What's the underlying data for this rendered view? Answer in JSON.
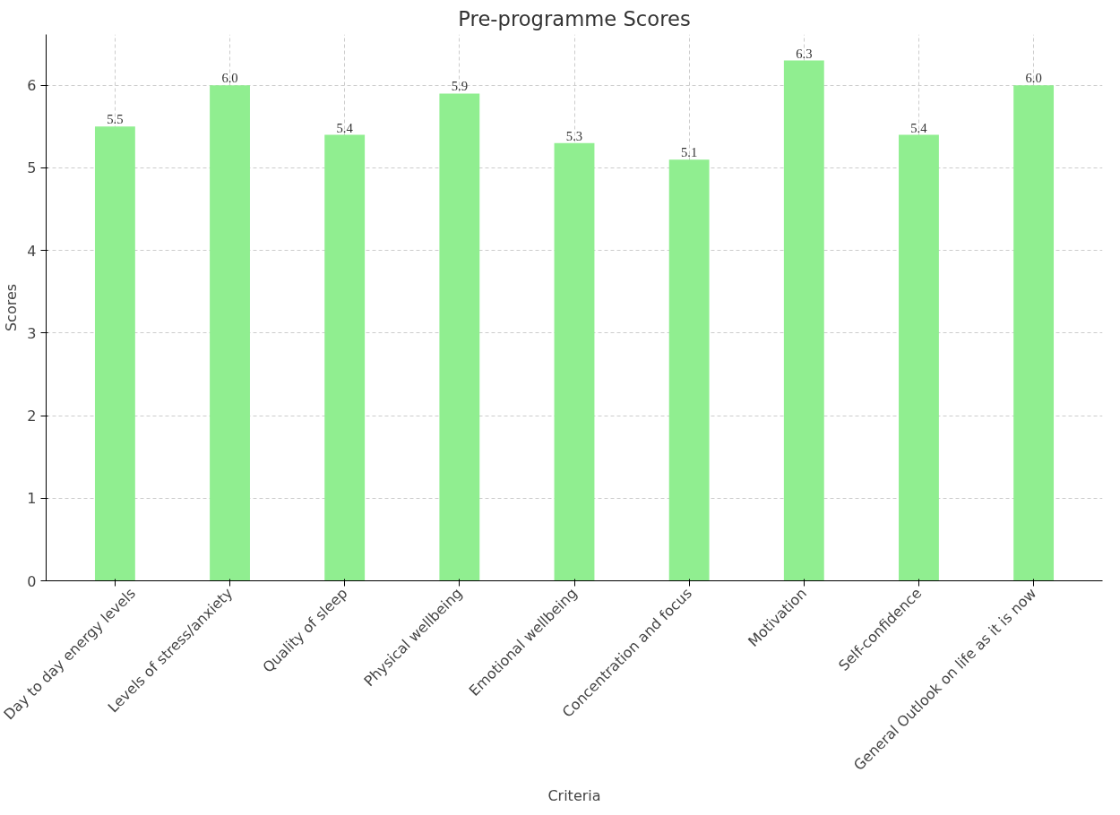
{
  "chart_data": {
    "type": "bar",
    "title": "Pre-programme Scores",
    "xlabel": "Criteria",
    "ylabel": "Scores",
    "categories": [
      "Day to day energy levels",
      "Levels of stress/anxiety",
      "Quality of sleep",
      "Physical wellbeing",
      "Emotional wellbeing",
      "Concentration and focus",
      "Motivation",
      "Self-confidence",
      "General Outlook on life as it is now"
    ],
    "values": [
      5.5,
      6.0,
      5.4,
      5.9,
      5.3,
      5.1,
      6.3,
      5.4,
      6.0
    ],
    "value_labels": [
      "5.5",
      "6.0",
      "5.4",
      "5.9",
      "5.3",
      "5.1",
      "6.3",
      "5.4",
      "6.0"
    ],
    "color": "#90ee90",
    "ylim": [
      0,
      6.615
    ],
    "yticks": [
      0,
      1,
      2,
      3,
      4,
      5,
      6
    ],
    "grid": true
  }
}
